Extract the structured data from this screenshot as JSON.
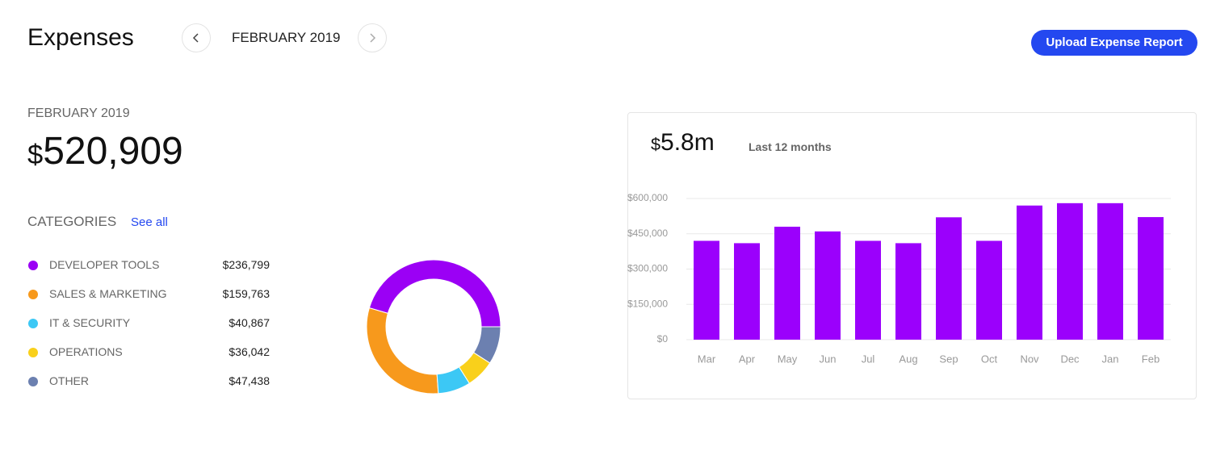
{
  "header": {
    "title": "Expenses",
    "period": "FEBRUARY 2019",
    "action": "Upload Expense Report"
  },
  "summary": {
    "period": "FEBRUARY 2019",
    "total": "$520,909",
    "section": "CATEGORIES",
    "link": "See all"
  },
  "chart_data": [
    {
      "type": "donut",
      "categories": [
        "DEVELOPER TOOLS",
        "SALES & MARKETING",
        "IT & SECURITY",
        "OPERATIONS",
        "OTHER"
      ],
      "values": [
        236799,
        159763,
        40867,
        36042,
        47438
      ],
      "value_labels": [
        "$236,799",
        "$159,763",
        "$40,867",
        "$36,042",
        "$47,438"
      ],
      "colors": [
        "#9b00f5",
        "#f7991c",
        "#3cc8f5",
        "#f9d01b",
        "#6c80b0"
      ]
    },
    {
      "type": "bar",
      "title": "$5.8m",
      "subtitle": "Last 12 months",
      "categories": [
        "Mar",
        "Apr",
        "May",
        "Jun",
        "Jul",
        "Aug",
        "Sep",
        "Oct",
        "Nov",
        "Dec",
        "Jan",
        "Feb"
      ],
      "values": [
        420000,
        410000,
        480000,
        460000,
        420000,
        410000,
        520000,
        420000,
        570000,
        580000,
        580000,
        520909
      ],
      "color": "#9b00fc",
      "ylim": [
        0,
        600000
      ],
      "yticks": [
        {
          "value": 0,
          "label": "$0"
        },
        {
          "value": 150000,
          "label": "$150,000"
        },
        {
          "value": 300000,
          "label": "$300,000"
        },
        {
          "value": 450000,
          "label": "$450,000"
        },
        {
          "value": 600000,
          "label": "$600,000"
        }
      ],
      "grid": true
    }
  ]
}
